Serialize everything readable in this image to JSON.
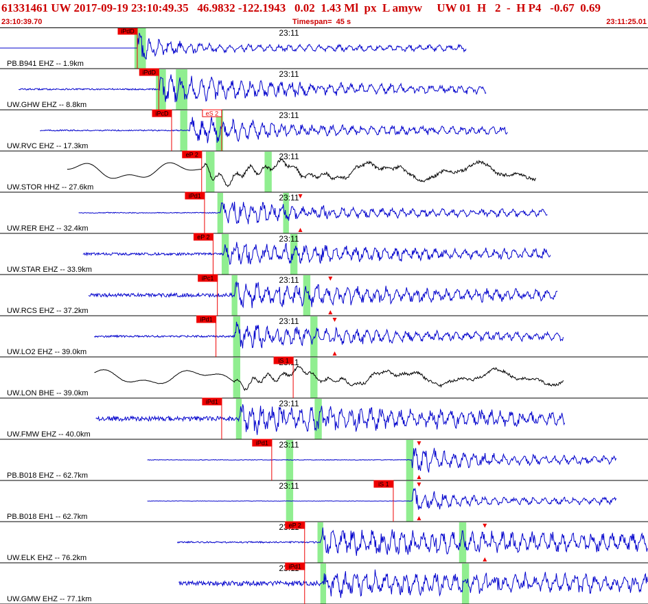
{
  "header": {
    "event_line": "61331461 UW 2017-09-19 23:10:49.35   46.9832 -122.1943   0.02  1.43 Ml  px  L amyw     UW 01  H   2  -  H P4   -0.67  0.69",
    "start_time": "23:10:39.70",
    "timespan": "Timespan=  45 s",
    "end_time": "23:11:25.01"
  },
  "colors": {
    "trace_blue": "#0000cc",
    "trace_black": "#000000",
    "pick_red": "#ee0000",
    "window_green": "#90ee90",
    "header_red": "#cc0000"
  },
  "time_marker_label": "23:11",
  "chart_data": {
    "type": "line",
    "title": "61331461 UW 2017-09-19 23:10:49.35",
    "x_range_seconds": [
      0,
      45.31
    ],
    "x_start": "23:10:39.70",
    "x_end": "23:11:25.01",
    "minute_marker_seconds": 20.3,
    "series": [
      {
        "name": "PB.B941 EHZ -- 1.9km",
        "color": "blue",
        "start_s": 0.0,
        "end_s": 32.6,
        "onset_s": 9.6,
        "picks": [
          {
            "label": "iPdD",
            "t": 9.6
          }
        ],
        "green": [
          9.4,
          10.2
        ],
        "amp": 0.4,
        "noise": 0.0,
        "decay": 2.5,
        "form": "flat-burst"
      },
      {
        "name": "UW.GHW EHZ -- 8.8km",
        "color": "blue",
        "start_s": 1.3,
        "end_s": 34.0,
        "onset_s": 11.1,
        "picks": [
          {
            "label": "iPdD",
            "t": 11.1
          }
        ],
        "green": [
          10.9,
          11.6,
          12.3,
          13.1
        ],
        "amp": 0.45,
        "noise": 0.05,
        "decay": 7,
        "form": "burst"
      },
      {
        "name": "UW.RVC EHZ -- 17.3km",
        "color": "blue",
        "start_s": 2.8,
        "end_s": 35.5,
        "onset_s": 13.3,
        "picks": [
          {
            "label": "iPcD",
            "t": 12.0
          },
          {
            "label": "eS 2",
            "t": 15.5,
            "style": "outline"
          }
        ],
        "green": [
          12.6,
          13.1,
          15.1,
          15.6
        ],
        "amp": 0.4,
        "noise": 0.04,
        "decay": 6,
        "form": "burst"
      },
      {
        "name": "UW.STOR HHZ -- 27.6km",
        "color": "black",
        "start_s": 4.7,
        "end_s": 37.5,
        "onset_s": 14.1,
        "picks": [
          {
            "label": "eP 2",
            "t": 14.1
          }
        ],
        "green": [
          14.4,
          15.0,
          18.5,
          19.0
        ],
        "amp": 0.35,
        "noise": 0.0,
        "decay": 0,
        "form": "long-period"
      },
      {
        "name": "UW.RER EHZ -- 32.4km",
        "color": "blue",
        "start_s": 5.5,
        "end_s": 38.3,
        "onset_s": 15.4,
        "picks": [
          {
            "label": "iPd1",
            "t": 14.3
          }
        ],
        "green": [
          15.2,
          15.6,
          19.8,
          20.2
        ],
        "amp": 0.4,
        "noise": 0.03,
        "decay": 6,
        "form": "burst",
        "amp_marker_s": 21.0
      },
      {
        "name": "UW.STAR EHZ -- 33.9km",
        "color": "blue",
        "start_s": 5.8,
        "end_s": 38.5,
        "onset_s": 15.6,
        "picks": [
          {
            "label": "eP 2",
            "t": 14.9
          }
        ],
        "green": [
          15.5,
          16.0,
          20.3,
          20.8
        ],
        "amp": 0.35,
        "noise": 0.08,
        "decay": 12,
        "form": "burst"
      },
      {
        "name": "UW.RCS EHZ -- 37.2km",
        "color": "blue",
        "start_s": 6.2,
        "end_s": 39.0,
        "onset_s": 16.4,
        "picks": [
          {
            "label": "iPc1",
            "t": 15.2
          }
        ],
        "green": [
          16.2,
          16.6,
          21.2,
          21.7
        ],
        "amp": 0.35,
        "noise": 0.12,
        "decay": 14,
        "form": "burst",
        "amp_marker_s": 23.1
      },
      {
        "name": "UW.LO2 EHZ -- 39.0km",
        "color": "blue",
        "start_s": 6.6,
        "end_s": 39.4,
        "onset_s": 16.4,
        "picks": [
          {
            "label": "iPd1",
            "t": 15.1
          }
        ],
        "green": [
          16.3,
          16.8,
          21.7,
          22.2
        ],
        "amp": 0.35,
        "noise": 0.06,
        "decay": 10,
        "form": "burst",
        "amp_marker_s": 23.4
      },
      {
        "name": "UW.LON BHE -- 39.0km",
        "color": "black",
        "start_s": 6.6,
        "end_s": 39.4,
        "onset_s": 16.4,
        "picks": [
          {
            "label": "iS 1",
            "t": 20.5
          }
        ],
        "green": [
          16.3,
          16.8,
          21.7,
          22.2
        ],
        "amp": 0.3,
        "noise": 0.02,
        "decay": 0,
        "form": "long-period"
      },
      {
        "name": "UW.FMW EHZ -- 40.0km",
        "color": "blue",
        "start_s": 6.7,
        "end_s": 39.5,
        "onset_s": 16.7,
        "picks": [
          {
            "label": "iPd1",
            "t": 15.5
          }
        ],
        "green": [
          16.5,
          16.9,
          22.0,
          22.5
        ],
        "amp": 0.45,
        "noise": 0.15,
        "decay": 14,
        "form": "burst"
      },
      {
        "name": "PB.B018 EHZ -- 62.7km",
        "color": "blue",
        "start_s": 10.3,
        "end_s": 43.1,
        "onset_s": 28.8,
        "picks": [
          {
            "label": "iPd1",
            "t": 19.0
          }
        ],
        "green": [
          20.0,
          20.5,
          28.4,
          28.9
        ],
        "amp": 0.45,
        "noise": 0.02,
        "decay": 3.5,
        "form": "burst",
        "amp_marker_s": 29.3
      },
      {
        "name": "PB.B018 EH1 -- 62.7km",
        "color": "blue",
        "start_s": 10.3,
        "end_s": 43.1,
        "onset_s": 28.8,
        "picks": [
          {
            "label": "iS 1",
            "t": 27.5
          }
        ],
        "green": [
          20.0,
          20.5,
          28.4,
          28.9
        ],
        "amp": 0.4,
        "noise": 0.01,
        "decay": 2.5,
        "form": "burst",
        "amp_marker_s": 29.3
      },
      {
        "name": "UW.ELK EHZ -- 76.2km",
        "color": "blue",
        "start_s": 12.4,
        "end_s": 45.3,
        "onset_s": 22.4,
        "picks": [
          {
            "label": "eP 2",
            "t": 21.3
          }
        ],
        "green": [
          22.2,
          22.6,
          32.1,
          32.6
        ],
        "amp": 0.4,
        "noise": 0.05,
        "decay": 30,
        "form": "burst",
        "amp_marker_s": 33.9
      },
      {
        "name": "UW.GMW EHZ -- 77.1km",
        "color": "blue",
        "start_s": 12.5,
        "end_s": 45.3,
        "onset_s": 22.6,
        "picks": [
          {
            "label": "iPd1",
            "t": 21.3
          }
        ],
        "green": [
          22.4,
          22.8,
          32.3,
          32.8
        ],
        "amp": 0.35,
        "noise": 0.15,
        "decay": 30,
        "form": "burst"
      }
    ]
  }
}
